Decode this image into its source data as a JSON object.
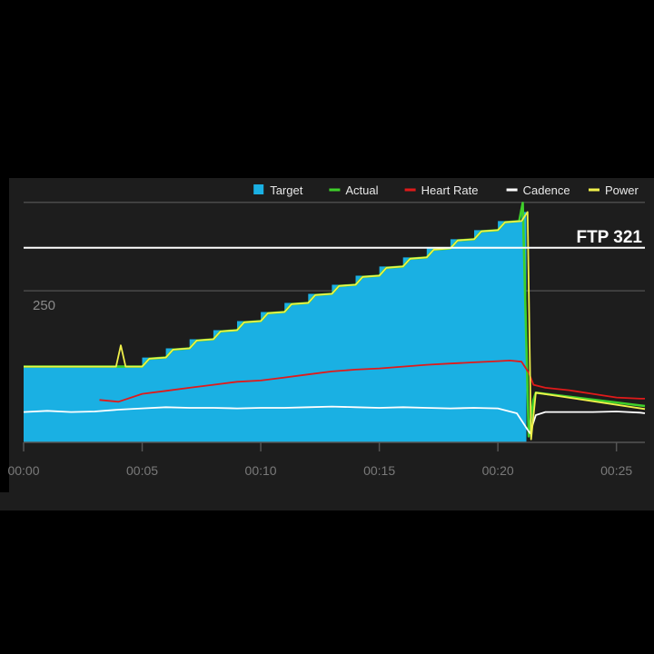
{
  "chart_data": {
    "type": "area",
    "x_unit": "minutes",
    "xlim": [
      0,
      26.2
    ],
    "ylim": [
      0,
      430
    ],
    "x_ticks": [
      {
        "value": 0,
        "label": "00:00"
      },
      {
        "value": 5,
        "label": "00:05"
      },
      {
        "value": 10,
        "label": "00:10"
      },
      {
        "value": 15,
        "label": "00:15"
      },
      {
        "value": 20,
        "label": "00:20"
      },
      {
        "value": 25,
        "label": "00:25"
      }
    ],
    "gridlines": [
      {
        "value": 250,
        "label": "250"
      },
      {
        "value": 396,
        "label": ""
      }
    ],
    "ftp": {
      "value": 321,
      "label": "FTP 321"
    },
    "legend": [
      {
        "name": "Target",
        "color": "#1ab0e3",
        "shape": "square"
      },
      {
        "name": "Actual",
        "color": "#3ecf2a",
        "shape": "line"
      },
      {
        "name": "Heart Rate",
        "color": "#e01a1a",
        "shape": "line"
      },
      {
        "name": "Cadence",
        "color": "#ffffff",
        "shape": "line"
      },
      {
        "name": "Power",
        "color": "#f0f04a",
        "shape": "line"
      }
    ],
    "series": [
      {
        "name": "Target",
        "x": [
          0,
          5,
          5,
          6,
          6,
          7,
          7,
          8,
          8,
          9,
          9,
          10,
          10,
          11,
          11,
          12,
          12,
          13,
          13,
          14,
          14,
          15,
          15,
          16,
          16,
          17,
          17,
          18,
          18,
          19,
          19,
          20,
          20,
          21,
          21,
          21.2,
          21.2,
          26.2
        ],
        "y": [
          125,
          125,
          140,
          140,
          155,
          155,
          170,
          170,
          185,
          185,
          200,
          200,
          215,
          215,
          230,
          230,
          245,
          245,
          260,
          260,
          275,
          275,
          290,
          290,
          305,
          305,
          320,
          320,
          335,
          335,
          350,
          350,
          365,
          365,
          380,
          380,
          0,
          0
        ]
      },
      {
        "name": "Actual",
        "x": [
          0,
          5,
          5.3,
          6,
          6.3,
          7,
          7.3,
          8,
          8.3,
          9,
          9.3,
          10,
          10.3,
          11,
          11.3,
          12,
          12.3,
          13,
          13.3,
          14,
          14.3,
          15,
          15.3,
          16,
          16.3,
          17,
          17.3,
          18,
          18.3,
          19,
          19.3,
          20,
          20.3,
          20.9,
          21.05,
          21.3,
          21.5,
          21.6,
          26.2
        ],
        "y": [
          125,
          125,
          138,
          140,
          153,
          155,
          168,
          170,
          183,
          185,
          198,
          200,
          213,
          215,
          228,
          230,
          243,
          245,
          258,
          260,
          273,
          275,
          288,
          290,
          303,
          305,
          318,
          320,
          333,
          335,
          348,
          350,
          363,
          365,
          395,
          10,
          70,
          82,
          60
        ]
      },
      {
        "name": "Heart Rate",
        "x": [
          3.2,
          4,
          5,
          6,
          7,
          8,
          9,
          10,
          11,
          12,
          13,
          14,
          15,
          16,
          17,
          18,
          19,
          20,
          20.5,
          21,
          21.3,
          21.5,
          22,
          23,
          24,
          25,
          26,
          26.2
        ],
        "y": [
          70,
          67,
          80,
          85,
          90,
          95,
          100,
          102,
          107,
          112,
          117,
          120,
          122,
          125,
          128,
          130,
          132,
          134,
          135,
          133,
          115,
          95,
          90,
          86,
          80,
          74,
          72,
          72
        ]
      },
      {
        "name": "Cadence",
        "x": [
          0,
          1,
          2,
          3,
          4,
          5,
          6,
          7,
          8,
          9,
          10,
          11,
          12,
          13,
          14,
          15,
          16,
          17,
          18,
          19,
          20,
          20.8,
          21.1,
          21.35,
          21.6,
          22,
          23,
          24,
          25,
          26,
          26.2
        ],
        "y": [
          50,
          52,
          50,
          51,
          54,
          56,
          58,
          57,
          57,
          56,
          57,
          57,
          58,
          59,
          58,
          57,
          58,
          57,
          56,
          57,
          56,
          48,
          30,
          15,
          45,
          50,
          50,
          50,
          51,
          49,
          48
        ]
      },
      {
        "name": "Power",
        "x": [
          0,
          3.9,
          4.1,
          4.3,
          5,
          5.3,
          6,
          6.3,
          7,
          7.3,
          8,
          8.3,
          9,
          9.3,
          10,
          10.3,
          11,
          11.3,
          12,
          12.3,
          13,
          13.3,
          14,
          14.3,
          15,
          15.3,
          16,
          16.3,
          17,
          17.3,
          18,
          18.3,
          19,
          19.3,
          20,
          20.3,
          21,
          21.25,
          21.4,
          21.6,
          26.2
        ],
        "y": [
          125,
          125,
          160,
          125,
          125,
          138,
          140,
          153,
          155,
          168,
          170,
          183,
          185,
          198,
          200,
          213,
          215,
          228,
          230,
          243,
          245,
          258,
          260,
          273,
          275,
          288,
          290,
          303,
          305,
          318,
          320,
          333,
          335,
          348,
          350,
          363,
          365,
          380,
          5,
          82,
          55
        ]
      }
    ]
  }
}
